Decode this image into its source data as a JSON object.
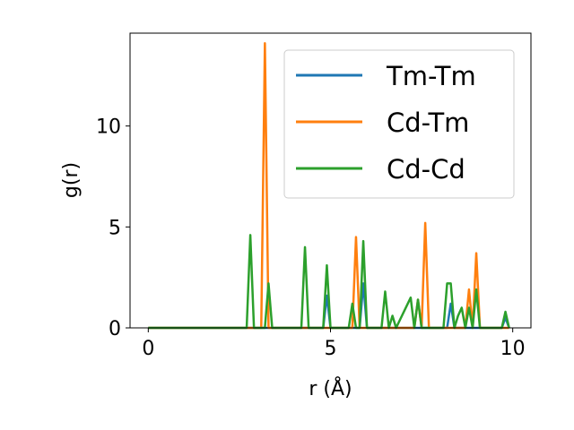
{
  "chart_data": {
    "type": "line",
    "title": "",
    "xlabel": "r (Å)",
    "ylabel": "g(r)",
    "xlim": [
      -0.5,
      10.5
    ],
    "ylim": [
      0,
      14.6
    ],
    "xticks": [
      0,
      5,
      10
    ],
    "yticks": [
      0,
      5,
      10
    ],
    "grid": false,
    "legend_position": "top-right",
    "series": [
      {
        "name": "Tm-Tm",
        "color": "#1f77b4",
        "x": [
          0,
          2.7,
          2.8,
          2.9,
          3.0,
          3.1,
          3.2,
          3.3,
          3.4,
          3.5,
          4.1,
          4.2,
          4.3,
          4.4,
          4.8,
          4.9,
          5.0,
          5.5,
          5.6,
          5.7,
          5.8,
          5.9,
          6.0,
          6.1,
          6.8,
          7.2,
          7.3,
          7.4,
          7.5,
          7.6,
          8.1,
          8.2,
          8.3,
          8.4,
          8.5,
          8.6,
          8.7,
          8.8,
          8.9,
          9.0,
          9.1,
          9.2,
          9.6,
          9.7,
          9.8,
          9.9
        ],
        "values": [
          0,
          0,
          0,
          0,
          0,
          0,
          0,
          0,
          0,
          0,
          0,
          0,
          0,
          0,
          0,
          1.6,
          0,
          0,
          0,
          0,
          0,
          2.2,
          0,
          0,
          0,
          0,
          0,
          0,
          0,
          0,
          0,
          0,
          1.2,
          0,
          0,
          0,
          0,
          0,
          0,
          0,
          0,
          0,
          0,
          0,
          0.5,
          0
        ]
      },
      {
        "name": "Cd-Tm",
        "color": "#ff7f0e",
        "x": [
          0,
          3.0,
          3.1,
          3.2,
          3.3,
          3.4,
          5.5,
          5.6,
          5.7,
          5.8,
          5.9,
          7.2,
          7.3,
          7.4,
          7.5,
          7.6,
          7.7,
          8.6,
          8.7,
          8.8,
          8.9,
          9.0,
          9.1,
          9.2,
          9.9
        ],
        "values": [
          0,
          0,
          0,
          14.1,
          0,
          0,
          0,
          0,
          4.5,
          0,
          0,
          0,
          0,
          1.4,
          0,
          5.2,
          0,
          0,
          0,
          1.9,
          0,
          3.7,
          0,
          0,
          0
        ]
      },
      {
        "name": "Cd-Cd",
        "color": "#2ca02c",
        "x": [
          0,
          2.7,
          2.8,
          2.9,
          3.1,
          3.2,
          3.3,
          3.4,
          4.1,
          4.2,
          4.3,
          4.4,
          4.8,
          4.9,
          5.0,
          5.5,
          5.6,
          5.7,
          5.8,
          5.9,
          6.0,
          6.3,
          6.4,
          6.5,
          6.6,
          6.7,
          6.8,
          7.2,
          7.3,
          7.4,
          7.5,
          7.6,
          7.9,
          8.0,
          8.1,
          8.2,
          8.3,
          8.4,
          8.5,
          8.6,
          8.7,
          8.8,
          8.9,
          9.0,
          9.1,
          9.2,
          9.6,
          9.7,
          9.8,
          9.9
        ],
        "values": [
          0,
          0,
          4.6,
          0,
          0,
          0,
          2.2,
          0,
          0,
          0,
          4.0,
          0,
          0,
          3.1,
          0,
          0,
          1.2,
          0,
          0,
          4.3,
          0,
          0,
          0,
          1.8,
          0,
          0.6,
          0,
          1.5,
          0,
          1.4,
          0,
          0,
          0,
          0,
          0,
          2.2,
          2.2,
          0,
          0.6,
          1.0,
          0,
          1.0,
          0,
          1.9,
          0,
          0,
          0,
          0,
          0.8,
          0
        ]
      }
    ]
  }
}
